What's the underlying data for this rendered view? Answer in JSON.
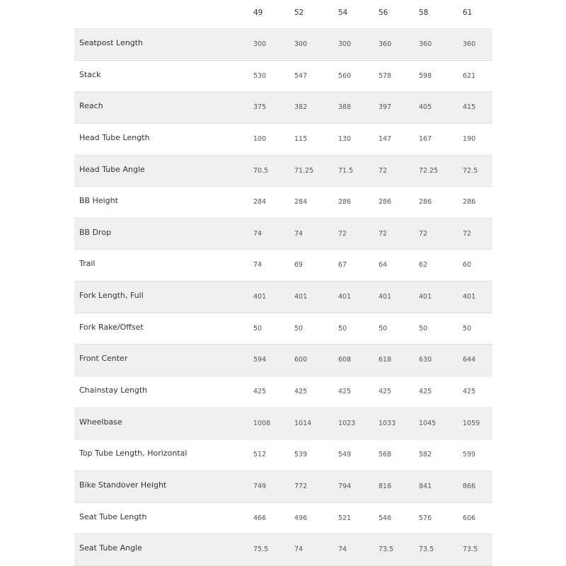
{
  "table": {
    "sizes": [
      "49",
      "52",
      "54",
      "56",
      "58",
      "61"
    ],
    "rows": [
      {
        "label": "Seatpost Length",
        "values": [
          "300",
          "300",
          "300",
          "360",
          "360",
          "360"
        ]
      },
      {
        "label": "Stack",
        "values": [
          "530",
          "547",
          "560",
          "578",
          "598",
          "621"
        ]
      },
      {
        "label": "Reach",
        "values": [
          "375",
          "382",
          "388",
          "397",
          "405",
          "415"
        ]
      },
      {
        "label": "Head Tube Length",
        "values": [
          "100",
          "115",
          "130",
          "147",
          "167",
          "190"
        ]
      },
      {
        "label": "Head Tube Angle",
        "values": [
          "70.5",
          "71.25",
          "71.5",
          "72",
          "72.25",
          "72.5"
        ]
      },
      {
        "label": "BB Height",
        "values": [
          "284",
          "284",
          "286",
          "286",
          "286",
          "286"
        ]
      },
      {
        "label": "BB Drop",
        "values": [
          "74",
          "74",
          "72",
          "72",
          "72",
          "72"
        ]
      },
      {
        "label": "Trail",
        "values": [
          "74",
          "69",
          "67",
          "64",
          "62",
          "60"
        ]
      },
      {
        "label": "Fork Length, Full",
        "values": [
          "401",
          "401",
          "401",
          "401",
          "401",
          "401"
        ]
      },
      {
        "label": "Fork Rake/Offset",
        "values": [
          "50",
          "50",
          "50",
          "50",
          "50",
          "50"
        ]
      },
      {
        "label": "Front Center",
        "values": [
          "594",
          "600",
          "608",
          "618",
          "630",
          "644"
        ]
      },
      {
        "label": "Chainstay Length",
        "values": [
          "425",
          "425",
          "425",
          "425",
          "425",
          "425"
        ]
      },
      {
        "label": "Wheelbase",
        "values": [
          "1008",
          "1014",
          "1023",
          "1033",
          "1045",
          "1059"
        ]
      },
      {
        "label": "Top Tube Length, Horizontal",
        "values": [
          "512",
          "539",
          "549",
          "568",
          "582",
          "599"
        ]
      },
      {
        "label": "Bike Standover Height",
        "values": [
          "749",
          "772",
          "794",
          "816",
          "841",
          "866"
        ]
      },
      {
        "label": "Seat Tube Length",
        "values": [
          "466",
          "496",
          "521",
          "546",
          "576",
          "606"
        ]
      },
      {
        "label": "Seat Tube Angle",
        "values": [
          "75.5",
          "74",
          "74",
          "73.5",
          "73.5",
          "73.5"
        ]
      }
    ]
  }
}
